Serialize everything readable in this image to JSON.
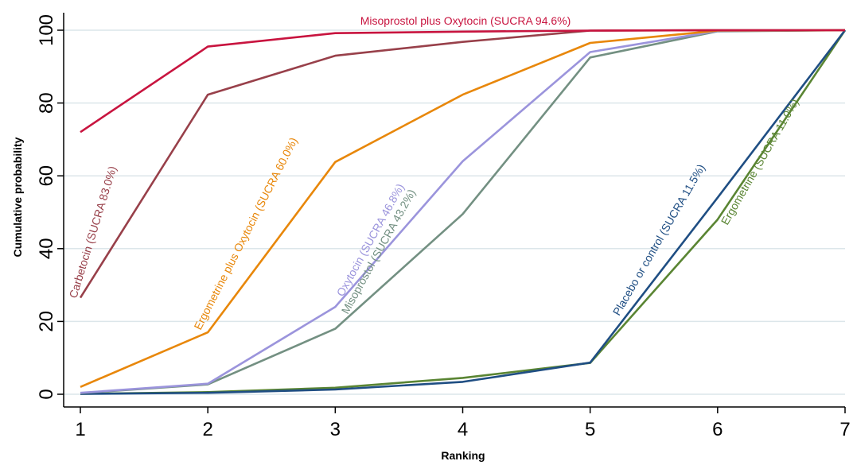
{
  "chart_data": {
    "type": "line",
    "title": "",
    "xlabel": "Ranking",
    "ylabel": "Cumulative probability",
    "x": [
      1,
      2,
      3,
      4,
      5,
      6,
      7
    ],
    "xlim": [
      1,
      7
    ],
    "ylim": [
      0,
      100
    ],
    "x_ticks": [
      "1",
      "2",
      "3",
      "4",
      "5",
      "6",
      "7"
    ],
    "y_ticks": [
      "0",
      "20",
      "40",
      "60",
      "80",
      "100"
    ],
    "grid": "horizontal",
    "legend": "none (inline labels)",
    "series": [
      {
        "name": "Misoprostol plus Oxytocin (SUCRA 94.6%)",
        "color": "#c8143f",
        "values": [
          72,
          95.5,
          99.2,
          99.6,
          99.9,
          100,
          100
        ]
      },
      {
        "name": "Carbetocin (SUCRA 83.0%)",
        "color": "#98404a",
        "values": [
          26.5,
          82.3,
          93,
          96.8,
          99.9,
          100,
          100
        ]
      },
      {
        "name": "Ergometrine plus Oxytocin (SUCRA 60.0%)",
        "color": "#e8870a",
        "values": [
          2,
          17,
          63.8,
          82.3,
          96.5,
          99.9,
          100
        ]
      },
      {
        "name": "Oxytocin (SUCRA 46.8%)",
        "color": "#9b94dc",
        "values": [
          0.4,
          2.9,
          24,
          64,
          94,
          99.8,
          100
        ]
      },
      {
        "name": "Misoprostol (SUCRA 43.2%)",
        "color": "#739082",
        "values": [
          0.3,
          2.7,
          18,
          49.5,
          92.5,
          99.7,
          100
        ]
      },
      {
        "name": "Placebo or control (SUCRA 11.5%)",
        "color": "#1f4e83",
        "values": [
          0.1,
          0.4,
          1.3,
          3.4,
          8.7,
          54,
          100
        ]
      },
      {
        "name": "Ergometrine (SUCRA 11.0%)",
        "color": "#5a8533",
        "values": [
          0.1,
          0.6,
          1.8,
          4.5,
          8.6,
          48,
          100
        ]
      }
    ]
  }
}
